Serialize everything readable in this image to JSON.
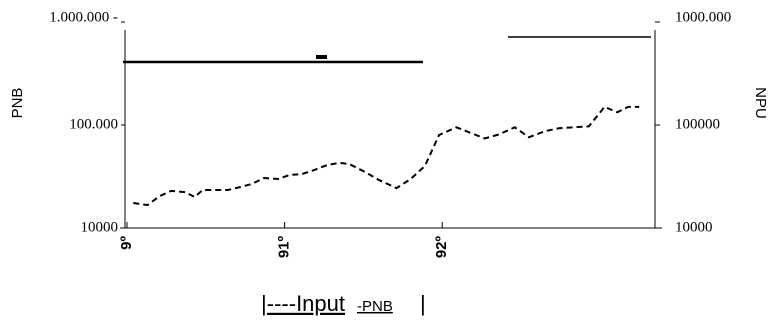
{
  "chart_data": {
    "type": "line",
    "y_label": "PNB",
    "y2_label": "NPU",
    "legend_texts": [
      "|----Input",
      "-PNB",
      "|"
    ],
    "x": [
      90.04,
      90.13,
      90.21,
      90.28,
      90.37,
      90.43,
      90.48,
      90.56,
      90.64,
      90.72,
      90.79,
      90.87,
      90.96,
      91.03,
      91.11,
      91.19,
      91.27,
      91.35,
      91.41,
      91.51,
      91.6,
      91.71,
      91.8,
      91.89,
      91.98,
      92.09,
      92.17,
      92.27,
      92.36,
      92.46,
      92.55,
      92.65,
      92.74,
      92.84,
      92.93,
      93.03,
      93.11,
      93.18,
      93.25
    ],
    "series": [
      {
        "color": "#000000",
        "values": [
          17500,
          16700,
          20500,
          22900,
          22300,
          20000,
          23400,
          23400,
          23400,
          25000,
          26700,
          30600,
          29900,
          32700,
          33400,
          36600,
          40900,
          42900,
          41800,
          35000,
          29200,
          24400,
          29900,
          40000,
          80000,
          95000,
          85000,
          74000,
          81000,
          95000,
          76000,
          87000,
          93000,
          95000,
          97000,
          150000,
          133000,
          150000,
          150000
        ]
      }
    ],
    "xlim": [
      90,
      93.35
    ],
    "xticks": [
      {
        "value": 90,
        "label": "9º"
      },
      {
        "value": 91,
        "label": "91º"
      },
      {
        "value": 92,
        "label": "92º"
      }
    ],
    "ylim": [
      10000,
      1000000
    ],
    "log_y": true,
    "yticks": [
      {
        "value": 10000,
        "label": "10000"
      },
      {
        "value": 100000,
        "label": "100.000"
      },
      {
        "value": 1000000,
        "label": "1.000.000 -"
      }
    ],
    "y2lim": [
      10000,
      1000000
    ],
    "y2ticks": [
      10000,
      100000,
      {
        "value": 1000000,
        "label": "1000.000"
      }
    ],
    "grid": false
  }
}
